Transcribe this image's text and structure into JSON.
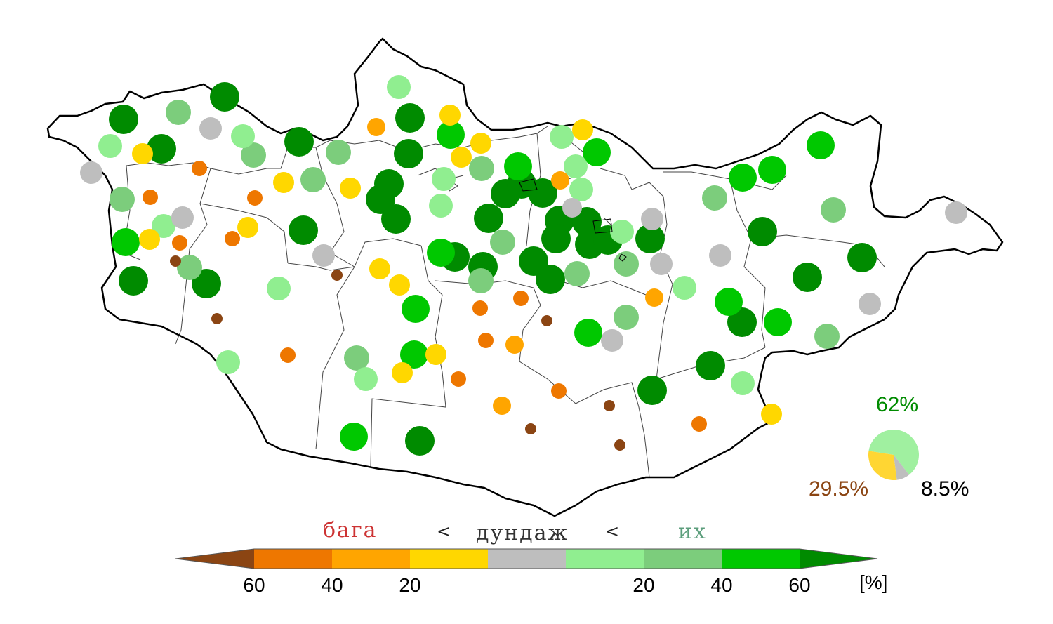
{
  "legend": {
    "low_label": "бага",
    "mid_label": "дундаж",
    "high_label": "их",
    "separator_1": "<",
    "separator_2": "<",
    "unit": "[%]",
    "tick_labels_left": [
      "60",
      "40",
      "20"
    ],
    "tick_labels_right": [
      "20",
      "40",
      "60"
    ],
    "colors": {
      "low_60_plus": "#8B4513",
      "low_40_60": "#EE7700",
      "low_20_40": "#FFA500",
      "low_0_20": "#FFD700",
      "normal": "#BEBEBE",
      "high_0_20": "#90EE90",
      "high_20_40": "#7CCD7C",
      "high_40_60": "#00C800",
      "high_60_plus": "#008B00"
    }
  },
  "summary": {
    "above_pct": "62%",
    "below_pct": "29.5%",
    "normal_pct": "8.5%",
    "above_color": "#008B00",
    "below_color": "#8B4513",
    "normal_color": "#000000",
    "pie": [
      {
        "category": "above",
        "value": 62,
        "color": "#A0F0A0"
      },
      {
        "category": "below",
        "value": 29.5,
        "color": "#FFD633"
      },
      {
        "category": "normal",
        "value": 8.5,
        "color": "#BEBEBE"
      }
    ]
  }
}
